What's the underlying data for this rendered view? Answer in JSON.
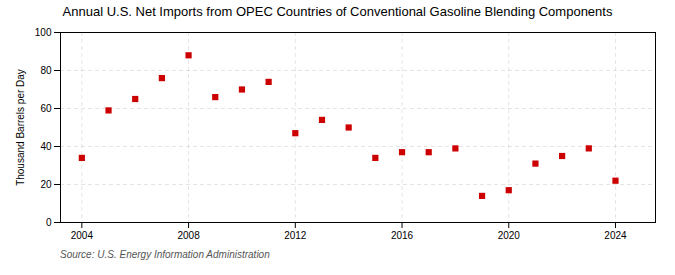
{
  "chart_data": {
    "type": "scatter",
    "title": "Annual U.S. Net Imports from OPEC Countries of Conventional Gasoline Blending Components",
    "ylabel": "Thousand Barrels per Day",
    "source": "Source: U.S. Energy Information Administration",
    "x": [
      2004,
      2005,
      2006,
      2007,
      2008,
      2009,
      2010,
      2011,
      2012,
      2013,
      2014,
      2015,
      2016,
      2017,
      2018,
      2019,
      2020,
      2021,
      2022,
      2023,
      2024
    ],
    "values": [
      34,
      59,
      65,
      76,
      88,
      66,
      70,
      74,
      47,
      54,
      50,
      34,
      37,
      37,
      39,
      14,
      17,
      31,
      35,
      39,
      22
    ],
    "color": "#cc0000",
    "marker": "square",
    "xlim": [
      2003.2,
      2025.5
    ],
    "xticks": [
      2004,
      2008,
      2012,
      2016,
      2020,
      2024
    ],
    "ylim": [
      0,
      100
    ],
    "yticks": [
      0,
      20,
      40,
      60,
      80,
      100
    ],
    "grid": true
  }
}
